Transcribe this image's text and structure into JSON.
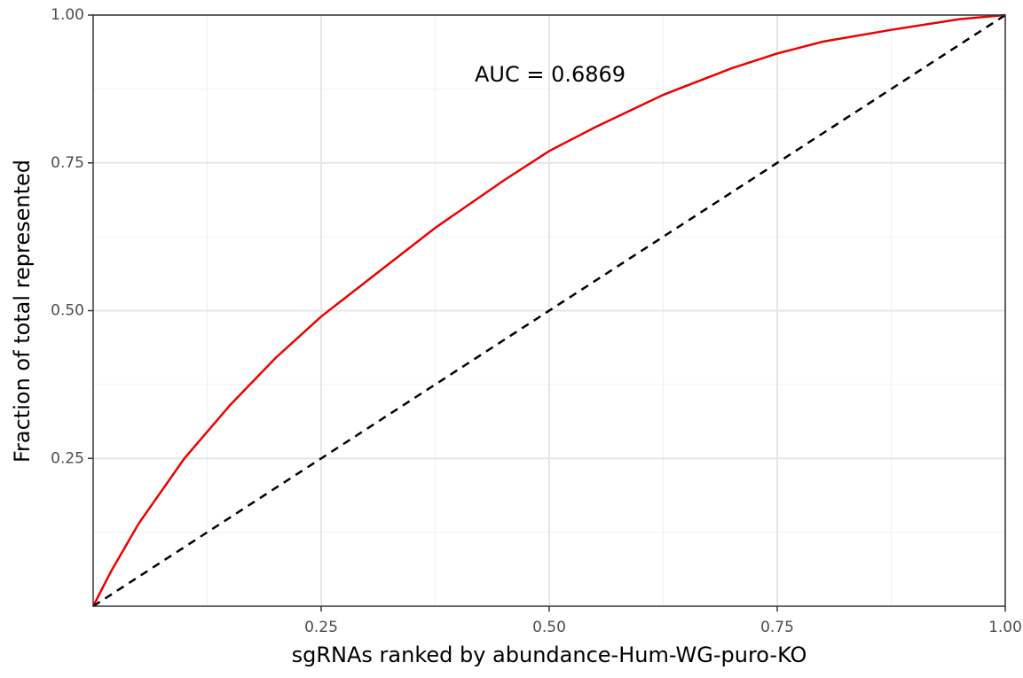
{
  "chart_data": {
    "type": "line",
    "x_label": "sgRNAs ranked by abundance-Hum-WG-puro-KO",
    "y_label": "Fraction of total represented",
    "annotation": "AUC = 0.6869",
    "xlim": [
      0,
      1
    ],
    "ylim": [
      0,
      1
    ],
    "xticks": [
      0.25,
      {
        "value": 0.5,
        "label": "0.50"
      },
      0.75,
      {
        "value": 1,
        "label": "1.00"
      }
    ],
    "yticks": [
      0.25,
      {
        "value": 0.5,
        "label": "0.50"
      },
      0.75,
      {
        "value": 1,
        "label": "1.00"
      }
    ],
    "grid": true,
    "series": [
      {
        "color": "#ee0000",
        "dash": false,
        "x": [
          0,
          0.02,
          0.05,
          0.1,
          0.15,
          0.2,
          0.25,
          0.3,
          0.375,
          0.45,
          0.5,
          0.55,
          0.625,
          0.7,
          0.75,
          0.8,
          0.875,
          0.95,
          1
        ],
        "values": [
          0,
          0.06,
          0.14,
          0.25,
          0.34,
          0.42,
          0.49,
          0.55,
          0.64,
          0.72,
          0.77,
          0.81,
          0.865,
          0.91,
          0.935,
          0.955,
          0.975,
          0.993,
          1
        ]
      },
      {
        "color": "#000000",
        "dash": true,
        "x": [
          0,
          1
        ],
        "values": [
          0,
          1
        ]
      }
    ]
  }
}
